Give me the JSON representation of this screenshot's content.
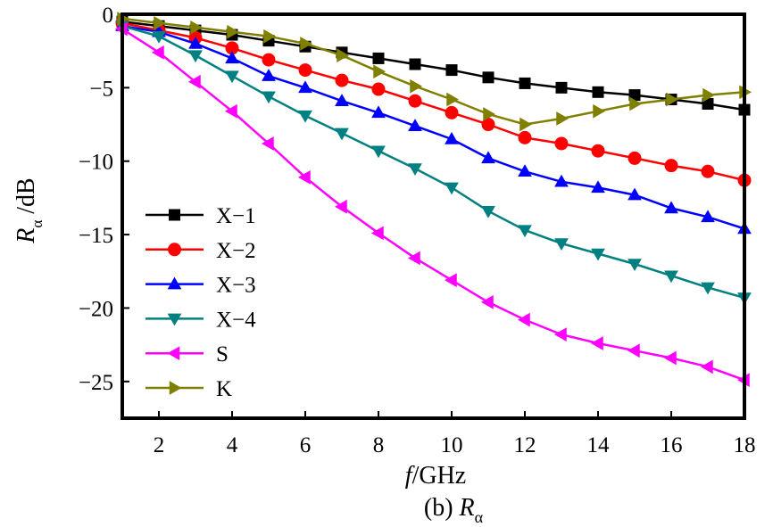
{
  "chart_data": {
    "type": "line",
    "xlabel_italic": "f",
    "xlabel_rest": "/GHz",
    "ylabel_main": "R",
    "ylabel_sub": "α",
    "ylabel_unit": " /dB",
    "caption_prefix": "(b)  ",
    "caption_main": "R",
    "caption_sub": "α",
    "xlim": [
      1,
      18
    ],
    "ylim": [
      -27.5,
      0
    ],
    "x_ticks": [
      2,
      4,
      6,
      8,
      10,
      12,
      14,
      16,
      18
    ],
    "y_ticks": [
      0,
      -5,
      -10,
      -15,
      -20,
      -25
    ],
    "grid": false,
    "legend_position": "left-middle",
    "x": [
      1,
      2,
      3,
      4,
      5,
      6,
      7,
      8,
      9,
      10,
      11,
      12,
      13,
      14,
      15,
      16,
      17,
      18
    ],
    "series": [
      {
        "name": "X−1",
        "color": "#000000",
        "marker": "square",
        "values": [
          -0.5,
          -0.8,
          -1.1,
          -1.4,
          -1.8,
          -2.2,
          -2.6,
          -3.0,
          -3.4,
          -3.8,
          -4.3,
          -4.7,
          -5.0,
          -5.3,
          -5.5,
          -5.8,
          -6.1,
          -6.5
        ]
      },
      {
        "name": "X−2",
        "color": "#ff0000",
        "marker": "circle",
        "values": [
          -0.6,
          -1.1,
          -1.6,
          -2.3,
          -3.1,
          -3.8,
          -4.5,
          -5.1,
          -5.9,
          -6.7,
          -7.5,
          -8.4,
          -8.8,
          -9.3,
          -9.8,
          -10.3,
          -10.7,
          -11.3
        ]
      },
      {
        "name": "X−3",
        "color": "#0000ff",
        "marker": "triangle-up",
        "values": [
          -0.8,
          -1.2,
          -2.0,
          -3.0,
          -4.2,
          -5.0,
          -5.9,
          -6.7,
          -7.6,
          -8.5,
          -9.8,
          -10.7,
          -11.4,
          -11.8,
          -12.3,
          -13.2,
          -13.8,
          -14.6
        ]
      },
      {
        "name": "X−4",
        "color": "#008080",
        "marker": "triangle-down",
        "values": [
          -0.8,
          -1.5,
          -2.8,
          -4.2,
          -5.6,
          -6.9,
          -8.1,
          -9.3,
          -10.5,
          -11.8,
          -13.4,
          -14.7,
          -15.6,
          -16.3,
          -17.0,
          -17.8,
          -18.6,
          -19.3
        ]
      },
      {
        "name": "S",
        "color": "#ff00ff",
        "marker": "triangle-left",
        "values": [
          -1.0,
          -2.6,
          -4.6,
          -6.6,
          -8.8,
          -11.1,
          -13.1,
          -14.9,
          -16.6,
          -18.1,
          -19.6,
          -20.8,
          -21.8,
          -22.4,
          -22.9,
          -23.4,
          -24.0,
          -24.9
        ]
      },
      {
        "name": "K",
        "color": "#808000",
        "marker": "triangle-right",
        "values": [
          -0.3,
          -0.6,
          -0.9,
          -1.2,
          -1.5,
          -2.0,
          -2.8,
          -3.9,
          -4.9,
          -5.8,
          -6.8,
          -7.5,
          -7.1,
          -6.6,
          -6.1,
          -5.8,
          -5.5,
          -5.3
        ]
      }
    ]
  }
}
